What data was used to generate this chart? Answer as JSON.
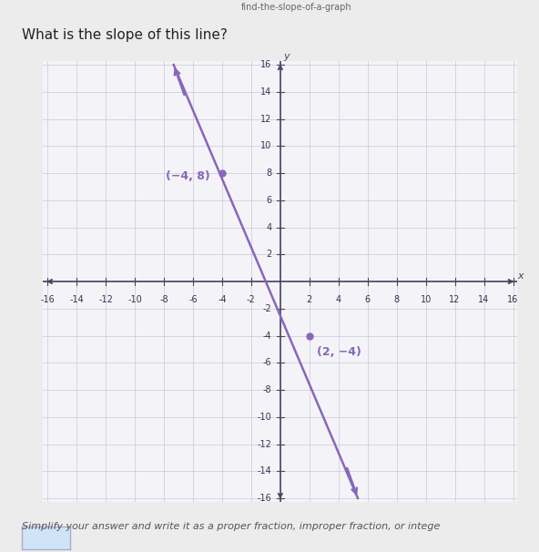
{
  "title": "What is the slope of this line?",
  "subtitle": "find-the-slope-of-a-graph",
  "x_range": [
    -16,
    16
  ],
  "y_range": [
    -16,
    16
  ],
  "x_ticks": [
    -16,
    -14,
    -12,
    -10,
    -8,
    -6,
    -4,
    -2,
    2,
    4,
    6,
    8,
    10,
    12,
    14,
    16
  ],
  "y_ticks": [
    -16,
    -14,
    -12,
    -10,
    -8,
    -6,
    -4,
    -2,
    2,
    4,
    6,
    8,
    10,
    12,
    14,
    16
  ],
  "line_extended": [
    [
      -7.33,
      16
    ],
    [
      5.33,
      -16
    ]
  ],
  "line_color": "#8866bb",
  "point1": [
    -4,
    8
  ],
  "point1_label": "(−4, 8)",
  "point2": [
    2,
    -4
  ],
  "point2_label": "(2, −4)",
  "dot_color": "#8866bb",
  "bg_color": "#ececec",
  "plot_bg": "#f4f4f8",
  "grid_color": "#c8c8d8",
  "axis_color": "#444466",
  "font_color": "#8866bb",
  "tick_fontsize": 7,
  "footer_text": "Simplify your answer and write it as a proper fraction, improper fraction, or intege",
  "answer_box_color": "#d0e4f8"
}
